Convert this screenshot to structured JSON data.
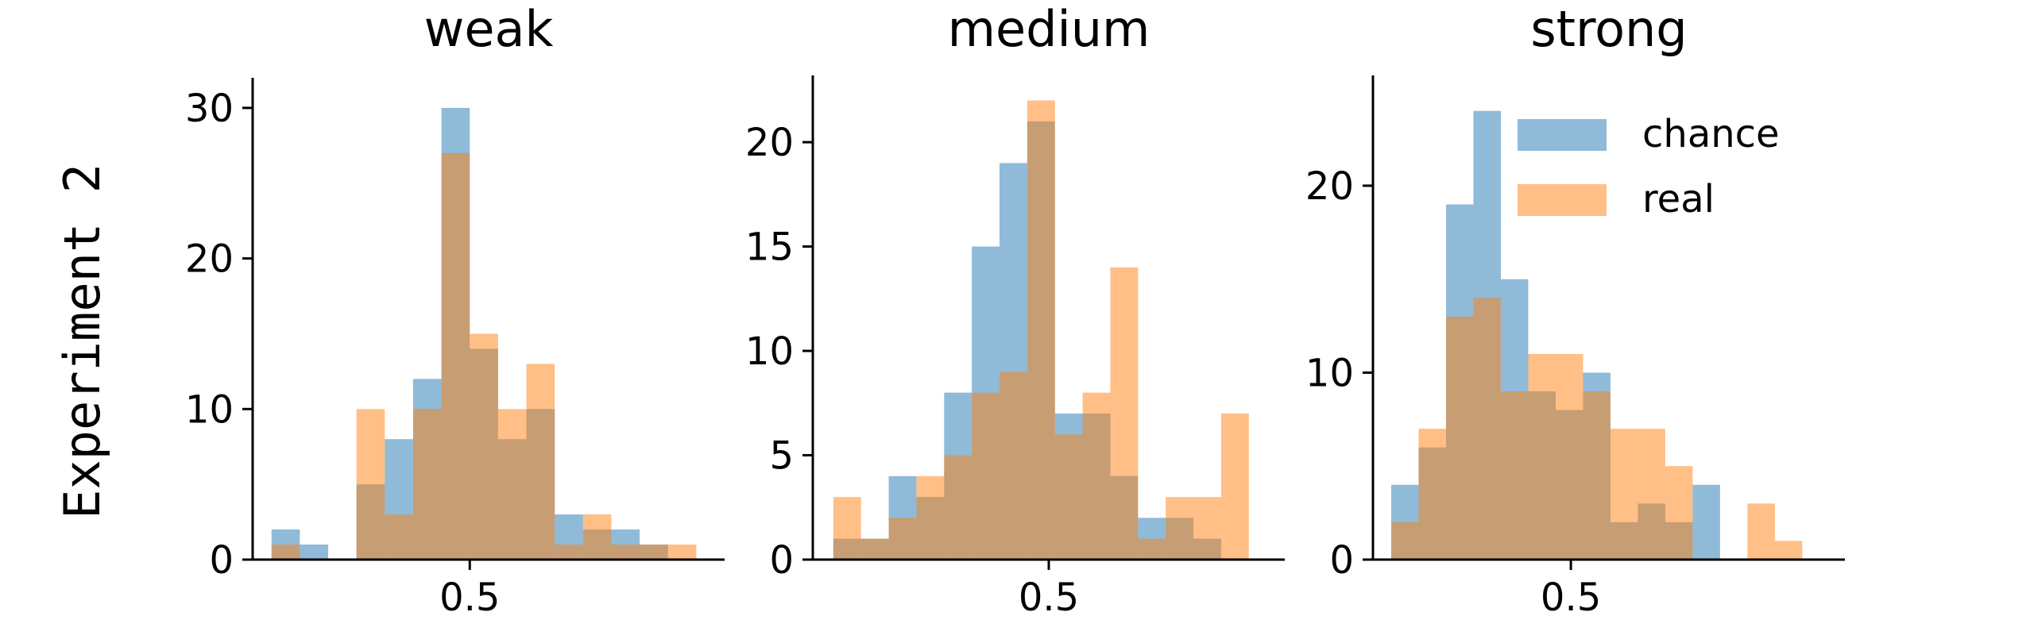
{
  "row_label": "Experiment 2",
  "colors": {
    "chance": "#1f77b4",
    "real": "#ff7f0e",
    "opacity": 0.5
  },
  "chart_data": [
    {
      "type": "histogram",
      "title": "weak",
      "xlabel": "",
      "ylabel": "",
      "xlim": [
        0.27,
        0.77
      ],
      "ylim": [
        0,
        32
      ],
      "xticks": [
        0.5
      ],
      "xtick_labels": [
        "0.5"
      ],
      "yticks": [
        0,
        10,
        20,
        30
      ],
      "ytick_labels": [
        "0",
        "10",
        "20",
        "30"
      ],
      "grid": false,
      "bin_edges": [
        0.29,
        0.32,
        0.35,
        0.38,
        0.41,
        0.44,
        0.47,
        0.5,
        0.53,
        0.56,
        0.59,
        0.62,
        0.65,
        0.68,
        0.71,
        0.74,
        0.77
      ],
      "series": [
        {
          "name": "chance",
          "values": [
            2,
            1,
            0,
            5,
            8,
            12,
            30,
            14,
            8,
            10,
            3,
            2,
            2,
            1,
            0,
            0
          ]
        },
        {
          "name": "real",
          "values": [
            1,
            0,
            0,
            10,
            3,
            10,
            27,
            15,
            10,
            13,
            1,
            3,
            1,
            1,
            1,
            0
          ]
        }
      ]
    },
    {
      "type": "histogram",
      "title": "medium",
      "xlabel": "",
      "ylabel": "",
      "xlim": [
        0.27,
        0.73
      ],
      "ylim": [
        0,
        23.2
      ],
      "xticks": [
        0.5
      ],
      "xtick_labels": [
        "0.5"
      ],
      "yticks": [
        0,
        5,
        10,
        15,
        20
      ],
      "ytick_labels": [
        "0",
        "5",
        "10",
        "15",
        "20"
      ],
      "grid": false,
      "bin_edges": [
        0.29,
        0.317,
        0.344,
        0.371,
        0.398,
        0.425,
        0.452,
        0.479,
        0.506,
        0.533,
        0.56,
        0.587,
        0.614,
        0.641,
        0.668,
        0.695
      ],
      "series": [
        {
          "name": "chance",
          "values": [
            1,
            1,
            4,
            3,
            8,
            15,
            19,
            21,
            7,
            7,
            4,
            2,
            2,
            1
          ]
        },
        {
          "name": "real",
          "values": [
            3,
            1,
            2,
            4,
            5,
            8,
            9,
            22,
            6,
            8,
            14,
            1,
            3,
            3,
            7
          ]
        }
      ]
    },
    {
      "type": "histogram",
      "title": "strong",
      "xlabel": "",
      "ylabel": "",
      "xlim": [
        0.37,
        0.68
      ],
      "ylim": [
        0,
        25.9
      ],
      "xticks": [
        0.5
      ],
      "xtick_labels": [
        "0.5"
      ],
      "yticks": [
        0,
        10,
        20
      ],
      "ytick_labels": [
        "0",
        "10",
        "20"
      ],
      "grid": false,
      "legend": {
        "position": "top-right",
        "entries": [
          "chance",
          "real"
        ]
      },
      "bin_edges": [
        0.382,
        0.4,
        0.418,
        0.436,
        0.454,
        0.472,
        0.49,
        0.508,
        0.526,
        0.544,
        0.562,
        0.58,
        0.598,
        0.616,
        0.634,
        0.652
      ],
      "series": [
        {
          "name": "chance",
          "values": [
            4,
            6,
            19,
            24,
            15,
            9,
            8,
            10,
            2,
            3,
            2,
            4,
            0,
            0,
            0
          ]
        },
        {
          "name": "real",
          "values": [
            2,
            7,
            13,
            14,
            9,
            11,
            11,
            9,
            7,
            7,
            5,
            0,
            0,
            3,
            1
          ]
        }
      ]
    }
  ]
}
